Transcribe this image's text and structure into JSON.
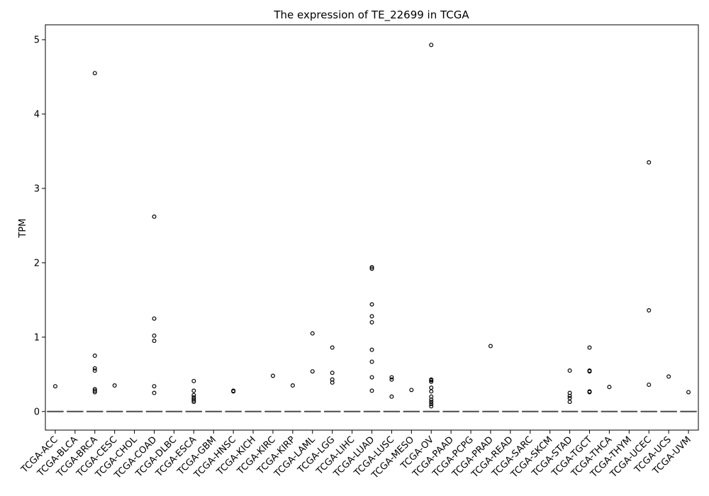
{
  "chart_data": {
    "type": "box",
    "title": "The expression of TE_22699 in TCGA",
    "xlabel": "",
    "ylabel": "TPM",
    "ylim": [
      -0.25,
      5.2
    ],
    "yticks": [
      0,
      1,
      2,
      3,
      4,
      5
    ],
    "categories": [
      "TCGA-ACC",
      "TCGA-BLCA",
      "TCGA-BRCA",
      "TCGA-CESC",
      "TCGA-CHOL",
      "TCGA-COAD",
      "TCGA-DLBC",
      "TCGA-ESCA",
      "TCGA-GBM",
      "TCGA-HNSC",
      "TCGA-KICH",
      "TCGA-KIRC",
      "TCGA-KIRP",
      "TCGA-LAML",
      "TCGA-LGG",
      "TCGA-LIHC",
      "TCGA-LUAD",
      "TCGA-LUSC",
      "TCGA-MESO",
      "TCGA-OV",
      "TCGA-PAAD",
      "TCGA-PCPG",
      "TCGA-PRAD",
      "TCGA-READ",
      "TCGA-SARC",
      "TCGA-SKCM",
      "TCGA-STAD",
      "TCGA-TGCT",
      "TCGA-THCA",
      "TCGA-THYM",
      "TCGA-UCEC",
      "TCGA-UCS",
      "TCGA-UVM"
    ],
    "median": 0,
    "outliers": [
      [
        0.34
      ],
      [],
      [
        4.55,
        0.75,
        0.58,
        0.55,
        0.3,
        0.28,
        0.26
      ],
      [
        0.35
      ],
      [],
      [
        2.62,
        1.25,
        1.02,
        0.95,
        0.34,
        0.25
      ],
      [],
      [
        0.41,
        0.28,
        0.22,
        0.19,
        0.17,
        0.15,
        0.13
      ],
      [],
      [
        0.28,
        0.27
      ],
      [],
      [
        0.48
      ],
      [
        0.35
      ],
      [
        1.05,
        0.54
      ],
      [
        0.86,
        0.52,
        0.43,
        0.39
      ],
      [],
      [
        1.94,
        1.92,
        1.44,
        1.28,
        1.2,
        0.83,
        0.67,
        0.46,
        0.28
      ],
      [
        0.46,
        0.43,
        0.2
      ],
      [
        0.29
      ],
      [
        4.93,
        0.43,
        0.42,
        0.4,
        0.32,
        0.27,
        0.2,
        0.16,
        0.13,
        0.1,
        0.07
      ],
      [],
      [],
      [
        0.88
      ],
      [],
      [],
      [],
      [
        0.55,
        0.25,
        0.21,
        0.18,
        0.13
      ],
      [
        0.86,
        0.55,
        0.54,
        0.27,
        0.26
      ],
      [
        0.33
      ],
      [],
      [
        3.35,
        1.36,
        0.36
      ],
      [
        0.47
      ],
      [
        0.26
      ]
    ],
    "colors": {
      "median_line": "#4a4a4a",
      "marker_edge": "#000000",
      "axis": "#000000"
    },
    "grid": false,
    "legend": "none"
  }
}
